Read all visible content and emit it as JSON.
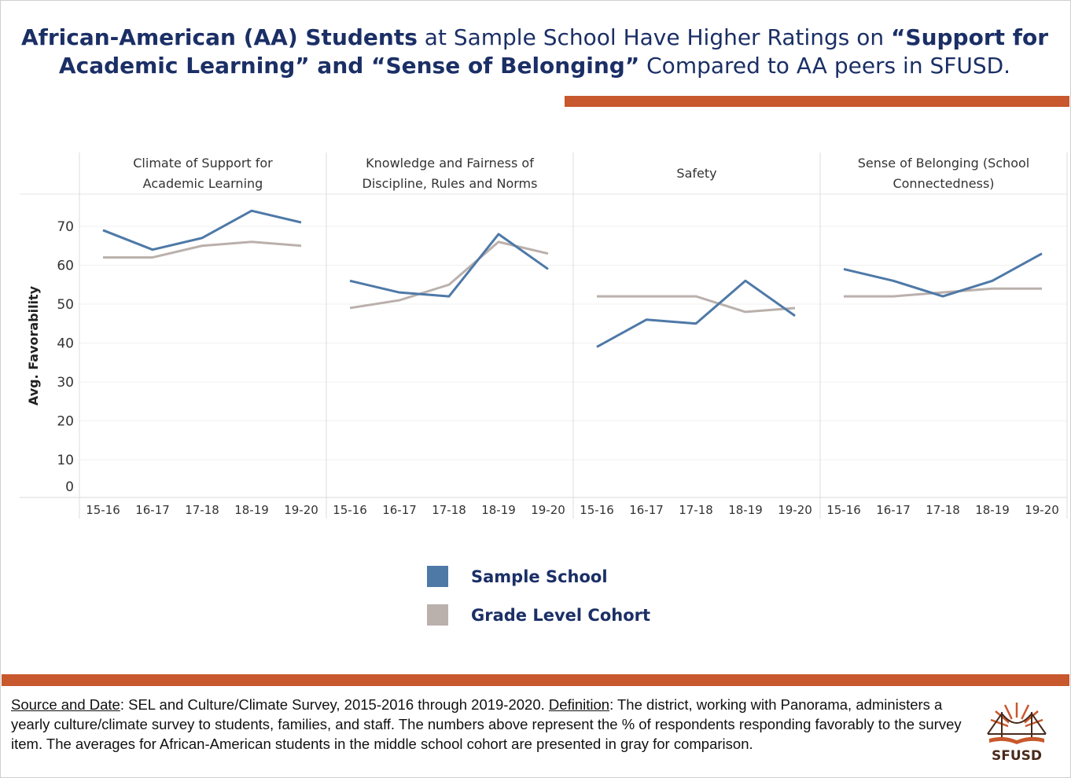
{
  "title": {
    "part1_bold": "African-American (AA) Students",
    "part2": " at Sample School Have Higher Ratings on ",
    "part3_bold": "“Support for Academic Learning” and “Sense of Belonging”",
    "part4": "  Compared to AA peers in SFUSD."
  },
  "colors": {
    "accent": "#c8582d",
    "title": "#1b2f66",
    "sample_school": "#4e79a7",
    "cohort": "#bab0ac"
  },
  "chart_data": {
    "type": "line",
    "ylabel": "Avg. Favorability",
    "ylim": [
      0,
      75
    ],
    "yticks": [
      0,
      10,
      20,
      30,
      40,
      50,
      60,
      70
    ],
    "grid": true,
    "legend_placement": "bottom-center",
    "categories": [
      "15-16",
      "16-17",
      "17-18",
      "18-19",
      "19-20"
    ],
    "panels": [
      {
        "title": "Climate of Support for Academic Learning",
        "series": [
          {
            "name": "Sample School",
            "values": [
              69,
              64,
              67,
              74,
              71
            ]
          },
          {
            "name": "Grade Level Cohort",
            "values": [
              62,
              62,
              65,
              66,
              65
            ]
          }
        ]
      },
      {
        "title": "Knowledge and Fairness of Discipline, Rules and Norms",
        "series": [
          {
            "name": "Sample School",
            "values": [
              56,
              53,
              52,
              68,
              59
            ]
          },
          {
            "name": "Grade Level Cohort",
            "values": [
              49,
              51,
              55,
              66,
              63
            ]
          }
        ]
      },
      {
        "title": "Safety",
        "series": [
          {
            "name": "Sample School",
            "values": [
              39,
              46,
              45,
              56,
              47
            ]
          },
          {
            "name": "Grade Level Cohort",
            "values": [
              52,
              52,
              52,
              48,
              49
            ]
          }
        ]
      },
      {
        "title": "Sense of Belonging (School Connectedness)",
        "series": [
          {
            "name": "Sample School",
            "values": [
              59,
              56,
              52,
              56,
              63
            ]
          },
          {
            "name": "Grade Level Cohort",
            "values": [
              52,
              52,
              53,
              54,
              54
            ]
          }
        ]
      }
    ]
  },
  "legend": {
    "sample_school": "Sample School",
    "cohort": "Grade Level Cohort"
  },
  "footer": {
    "source_label": "Source and Date",
    "source_text": ": SEL and Culture/Climate Survey, 2015-2016 through 2019-2020. ",
    "definition_label": "Definition",
    "definition_text": ": The district, working with Panorama, administers a yearly culture/climate survey to students, families, and staff. The numbers above represent the % of respondents responding favorably to the survey item. The averages for African-American students in the middle school cohort are presented in gray for comparison."
  },
  "logo": {
    "text": "SFUSD"
  }
}
